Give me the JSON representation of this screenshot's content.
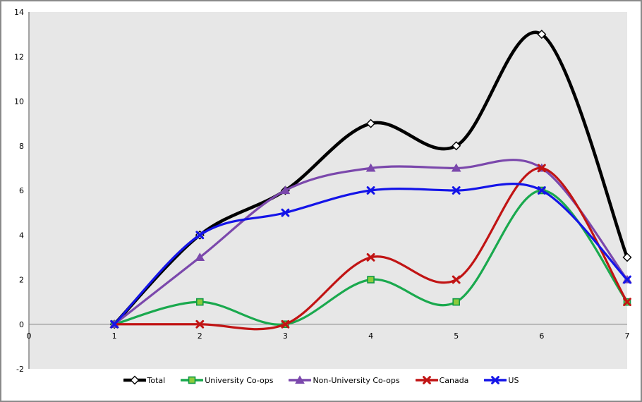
{
  "chart_data": {
    "type": "line",
    "smoothed": true,
    "x": [
      1,
      2,
      3,
      4,
      5,
      6,
      7
    ],
    "x_ticks": [
      "0",
      "1",
      "2",
      "3",
      "4",
      "5",
      "6",
      "7"
    ],
    "y_ticks": [
      "-2",
      "0",
      "2",
      "4",
      "6",
      "8",
      "10",
      "12",
      "14"
    ],
    "xlim": [
      0,
      7
    ],
    "ylim": [
      -2,
      14
    ],
    "grid": "zero-line-only",
    "plot_bg": "#E7E7E7",
    "axis_color": "#808080",
    "legend_position": "bottom",
    "series": [
      {
        "name": "Total",
        "values": [
          0,
          4,
          6,
          9,
          8,
          13,
          3
        ],
        "color": "#000000",
        "line_width": 4.6,
        "marker": "diamond",
        "marker_fill": "#ffffff",
        "marker_stroke": "#000000"
      },
      {
        "name": "University Co-ops",
        "values": [
          0,
          1,
          0,
          2,
          1,
          6,
          1
        ],
        "color": "#1AA94E",
        "line_width": 3.2,
        "marker": "square",
        "marker_fill": "#8CCB3C",
        "marker_stroke": "#0E9A44"
      },
      {
        "name": "Non-University Co-ops",
        "values": [
          0,
          3,
          6,
          7,
          7,
          7,
          2
        ],
        "color": "#7B48AC",
        "line_width": 3.2,
        "marker": "triangle",
        "marker_fill": "#7B48AC",
        "marker_stroke": "#7B48AC"
      },
      {
        "name": "Canada",
        "values": [
          0,
          0,
          0,
          3,
          2,
          7,
          1
        ],
        "color": "#C11414",
        "line_width": 3.2,
        "marker": "x",
        "marker_fill": "#C11414",
        "marker_stroke": "#C11414"
      },
      {
        "name": "US",
        "values": [
          0,
          4,
          5,
          6,
          6,
          6,
          2
        ],
        "color": "#1414E8",
        "line_width": 3.2,
        "marker": "x",
        "marker_fill": "#1414E8",
        "marker_stroke": "#1414E8"
      }
    ],
    "title": "",
    "xlabel": "",
    "ylabel": ""
  }
}
